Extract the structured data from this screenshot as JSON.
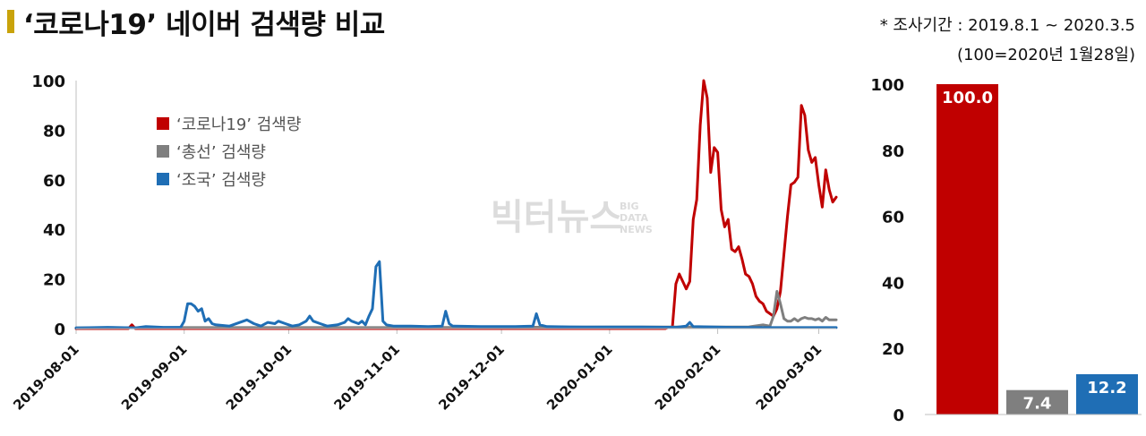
{
  "header": {
    "title": "‘코로나19’ 네이버 검색량 비교",
    "period_note": "* 조사기간 : 2019.8.1 ~ 2020.3.5",
    "index_note": "(100=2020년 1월28일)"
  },
  "watermark": {
    "main": "빅터뉴스",
    "sub1": "BIG",
    "sub2": "DATA",
    "sub3": "NEWS"
  },
  "colors": {
    "covid": "#c00000",
    "election": "#7f7f7f",
    "cho": "#1f6eb5"
  },
  "chart_data": [
    {
      "type": "line",
      "x_start": "2019-08-01",
      "x_end": "2020-03-05",
      "x_tick_labels": [
        "2019-08-01",
        "2019-09-01",
        "2019-10-01",
        "2019-11-01",
        "2019-12-01",
        "2020-01-01",
        "2020-02-01",
        "2020-03-01"
      ],
      "ylim": [
        0,
        100
      ],
      "y_ticks": [
        0,
        20,
        40,
        60,
        80,
        100
      ],
      "legend_position": "top-left",
      "series": [
        {
          "name": "‘코로나19’ 검색량",
          "color": "#c00000",
          "points": [
            [
              "2019-08-01",
              0
            ],
            [
              "2019-08-16",
              0
            ],
            [
              "2019-08-17",
              1.5
            ],
            [
              "2019-08-18",
              0
            ],
            [
              "2020-01-17",
              0
            ],
            [
              "2020-01-18",
              0.5
            ],
            [
              "2020-01-19",
              0.5
            ],
            [
              "2020-01-20",
              18
            ],
            [
              "2020-01-21",
              22
            ],
            [
              "2020-01-22",
              19
            ],
            [
              "2020-01-23",
              16
            ],
            [
              "2020-01-24",
              19
            ],
            [
              "2020-01-25",
              44
            ],
            [
              "2020-01-26",
              52
            ],
            [
              "2020-01-27",
              82
            ],
            [
              "2020-01-28",
              100
            ],
            [
              "2020-01-29",
              93
            ],
            [
              "2020-01-30",
              63
            ],
            [
              "2020-01-31",
              73
            ],
            [
              "2020-02-01",
              71
            ],
            [
              "2020-02-02",
              48
            ],
            [
              "2020-02-03",
              41
            ],
            [
              "2020-02-04",
              44
            ],
            [
              "2020-02-05",
              32
            ],
            [
              "2020-02-06",
              31
            ],
            [
              "2020-02-07",
              33
            ],
            [
              "2020-02-08",
              28
            ],
            [
              "2020-02-09",
              22
            ],
            [
              "2020-02-10",
              21
            ],
            [
              "2020-02-11",
              18
            ],
            [
              "2020-02-12",
              13
            ],
            [
              "2020-02-13",
              11
            ],
            [
              "2020-02-14",
              10
            ],
            [
              "2020-02-15",
              7
            ],
            [
              "2020-02-16",
              6
            ],
            [
              "2020-02-17",
              5
            ],
            [
              "2020-02-18",
              8
            ],
            [
              "2020-02-19",
              15
            ],
            [
              "2020-02-20",
              30
            ],
            [
              "2020-02-21",
              45
            ],
            [
              "2020-02-22",
              58
            ],
            [
              "2020-02-23",
              59
            ],
            [
              "2020-02-24",
              61
            ],
            [
              "2020-02-25",
              90
            ],
            [
              "2020-02-26",
              86
            ],
            [
              "2020-02-27",
              72
            ],
            [
              "2020-02-28",
              67
            ],
            [
              "2020-02-29",
              69
            ],
            [
              "2020-03-01",
              58
            ],
            [
              "2020-03-02",
              49
            ],
            [
              "2020-03-03",
              64
            ],
            [
              "2020-03-04",
              56
            ],
            [
              "2020-03-05",
              51
            ],
            [
              "2020-03-06",
              53
            ]
          ]
        },
        {
          "name": "‘총선’ 검색량",
          "color": "#7f7f7f",
          "points": [
            [
              "2019-08-01",
              0.3
            ],
            [
              "2019-09-01",
              0.4
            ],
            [
              "2019-10-01",
              0.4
            ],
            [
              "2019-11-01",
              0.4
            ],
            [
              "2019-12-01",
              0.5
            ],
            [
              "2020-01-01",
              0.6
            ],
            [
              "2020-02-10",
              0.7
            ],
            [
              "2020-02-14",
              1.5
            ],
            [
              "2020-02-16",
              1
            ],
            [
              "2020-02-17",
              5
            ],
            [
              "2020-02-18",
              15
            ],
            [
              "2020-02-19",
              10
            ],
            [
              "2020-02-20",
              4
            ],
            [
              "2020-02-21",
              3
            ],
            [
              "2020-02-22",
              3
            ],
            [
              "2020-02-23",
              4
            ],
            [
              "2020-02-24",
              3
            ],
            [
              "2020-02-25",
              4
            ],
            [
              "2020-02-26",
              4.5
            ],
            [
              "2020-02-27",
              4
            ],
            [
              "2020-02-28",
              4
            ],
            [
              "2020-02-29",
              3.5
            ],
            [
              "2020-03-01",
              4
            ],
            [
              "2020-03-02",
              3
            ],
            [
              "2020-03-03",
              4.5
            ],
            [
              "2020-03-04",
              3.5
            ],
            [
              "2020-03-05",
              3.5
            ],
            [
              "2020-03-06",
              3.5
            ]
          ]
        },
        {
          "name": "‘조국’ 검색량",
          "color": "#1f6eb5",
          "points": [
            [
              "2019-08-01",
              0.3
            ],
            [
              "2019-08-10",
              0.5
            ],
            [
              "2019-08-18",
              0.3
            ],
            [
              "2019-08-21",
              0.8
            ],
            [
              "2019-08-26",
              0.5
            ],
            [
              "2019-08-31",
              0.5
            ],
            [
              "2019-09-01",
              3
            ],
            [
              "2019-09-02",
              10
            ],
            [
              "2019-09-03",
              10
            ],
            [
              "2019-09-04",
              9
            ],
            [
              "2019-09-05",
              7
            ],
            [
              "2019-09-06",
              8
            ],
            [
              "2019-09-07",
              3
            ],
            [
              "2019-09-08",
              4
            ],
            [
              "2019-09-09",
              2
            ],
            [
              "2019-09-10",
              1.5
            ],
            [
              "2019-09-14",
              1
            ],
            [
              "2019-09-17",
              2.5
            ],
            [
              "2019-09-19",
              3.5
            ],
            [
              "2019-09-21",
              2
            ],
            [
              "2019-09-23",
              1
            ],
            [
              "2019-09-25",
              2.5
            ],
            [
              "2019-09-27",
              2
            ],
            [
              "2019-09-28",
              3
            ],
            [
              "2019-09-30",
              2
            ],
            [
              "2019-10-02",
              1
            ],
            [
              "2019-10-04",
              1.5
            ],
            [
              "2019-10-06",
              3
            ],
            [
              "2019-10-07",
              5
            ],
            [
              "2019-10-08",
              3
            ],
            [
              "2019-10-10",
              2
            ],
            [
              "2019-10-12",
              1
            ],
            [
              "2019-10-15",
              1.5
            ],
            [
              "2019-10-17",
              2.5
            ],
            [
              "2019-10-18",
              4
            ],
            [
              "2019-10-19",
              3
            ],
            [
              "2019-10-21",
              2
            ],
            [
              "2019-10-22",
              3
            ],
            [
              "2019-10-23",
              1.5
            ],
            [
              "2019-10-24",
              5
            ],
            [
              "2019-10-25",
              8
            ],
            [
              "2019-10-26",
              25
            ],
            [
              "2019-10-27",
              27
            ],
            [
              "2019-10-28",
              3
            ],
            [
              "2019-10-29",
              1.5
            ],
            [
              "2019-10-31",
              1
            ],
            [
              "2019-11-05",
              1
            ],
            [
              "2019-11-10",
              0.8
            ],
            [
              "2019-11-14",
              1
            ],
            [
              "2019-11-15",
              7
            ],
            [
              "2019-11-16",
              2
            ],
            [
              "2019-11-17",
              1
            ],
            [
              "2019-11-25",
              0.8
            ],
            [
              "2019-12-05",
              0.8
            ],
            [
              "2019-12-10",
              1
            ],
            [
              "2019-12-11",
              6
            ],
            [
              "2019-12-12",
              1.5
            ],
            [
              "2019-12-14",
              0.8
            ],
            [
              "2019-12-25",
              0.6
            ],
            [
              "2020-01-10",
              0.6
            ],
            [
              "2020-01-20",
              0.5
            ],
            [
              "2020-01-23",
              1
            ],
            [
              "2020-01-24",
              2.5
            ],
            [
              "2020-01-25",
              0.8
            ],
            [
              "2020-02-05",
              0.5
            ],
            [
              "2020-02-15",
              0.4
            ],
            [
              "2020-03-06",
              0.4
            ]
          ]
        }
      ]
    },
    {
      "type": "bar",
      "categories": [
        "‘코로나19’ 검색량",
        "‘총선’ 검색량",
        "‘조국’ 검색량"
      ],
      "values": [
        100.0,
        7.4,
        12.2
      ],
      "value_labels": [
        "100.0",
        "7.4",
        "12.2"
      ],
      "colors": [
        "#c00000",
        "#7f7f7f",
        "#1f6eb5"
      ],
      "ylim": [
        0,
        100
      ],
      "y_ticks": [
        0,
        20,
        40,
        60,
        80,
        100
      ]
    }
  ]
}
